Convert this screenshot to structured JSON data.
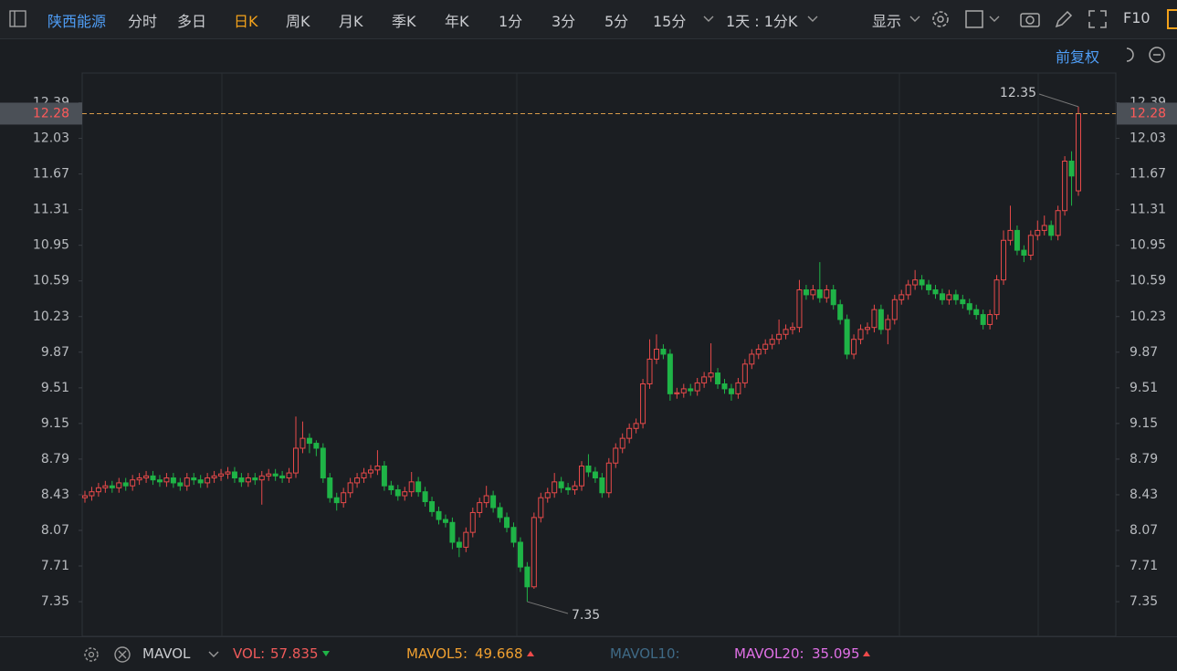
{
  "toolbar": {
    "stock": "陕西能源",
    "periods": [
      "分时",
      "多日",
      "日K",
      "周K",
      "月K",
      "季K",
      "年K",
      "1分",
      "3分",
      "5分",
      "15分"
    ],
    "interval": "1天 : 1分K",
    "display": "显示",
    "f10": "F10"
  },
  "adjust": "前复权",
  "chart_data": {
    "type": "candlestick",
    "up_color": "#e84a4a",
    "down_color": "#1fb447",
    "ylim": [
      7.0,
      12.69
    ],
    "yticks": [
      7.35,
      7.71,
      8.07,
      8.43,
      8.79,
      9.15,
      9.51,
      9.87,
      10.23,
      10.59,
      10.95,
      11.31,
      11.67,
      12.03,
      12.39
    ],
    "grid": false,
    "max_price": 12.35,
    "min_price": 7.35,
    "last_price": 12.28,
    "open": [
      8.4,
      8.42,
      8.46,
      8.5,
      8.52,
      8.5,
      8.55,
      8.52,
      8.58,
      8.6,
      8.62,
      8.58,
      8.56,
      8.6,
      8.55,
      8.52,
      8.6,
      8.58,
      8.55,
      8.6,
      8.62,
      8.64,
      8.66,
      8.6,
      8.56,
      8.6,
      8.58,
      8.62,
      8.64,
      8.62,
      8.6,
      8.65,
      8.9,
      9.0,
      8.95,
      8.9,
      8.6,
      8.4,
      8.35,
      8.45,
      8.55,
      8.6,
      8.65,
      8.68,
      8.72,
      8.52,
      8.48,
      8.42,
      8.46,
      8.56,
      8.46,
      8.36,
      8.26,
      8.18,
      8.15,
      7.95,
      7.9,
      8.05,
      8.25,
      8.35,
      8.42,
      8.3,
      8.2,
      8.1,
      7.95,
      7.7,
      7.5,
      8.2,
      8.4,
      8.45,
      8.56,
      8.5,
      8.48,
      8.52,
      8.72,
      8.66,
      8.6,
      8.45,
      8.75,
      8.9,
      9.0,
      9.1,
      9.15,
      9.55,
      9.8,
      9.9,
      9.85,
      9.45,
      9.46,
      9.5,
      9.48,
      9.56,
      9.62,
      9.66,
      9.55,
      9.5,
      9.45,
      9.56,
      9.75,
      9.85,
      9.9,
      9.95,
      10.0,
      10.05,
      10.1,
      10.12,
      10.5,
      10.45,
      10.5,
      10.42,
      10.5,
      10.35,
      10.2,
      9.85,
      10.0,
      10.1,
      10.12,
      10.3,
      10.1,
      10.2,
      10.4,
      10.45,
      10.55,
      10.6,
      10.55,
      10.5,
      10.46,
      10.4,
      10.45,
      10.4,
      10.36,
      10.3,
      10.25,
      10.15,
      10.25,
      10.6,
      11.0,
      11.1,
      10.9,
      10.85,
      11.05,
      11.1,
      11.15,
      11.05,
      11.3,
      11.8,
      11.5
    ],
    "high": [
      8.47,
      8.51,
      8.55,
      8.57,
      8.57,
      8.6,
      8.6,
      8.63,
      8.65,
      8.67,
      8.67,
      8.63,
      8.65,
      8.65,
      8.6,
      8.65,
      8.65,
      8.63,
      8.65,
      8.67,
      8.69,
      8.71,
      8.71,
      8.65,
      8.65,
      8.65,
      8.67,
      8.69,
      8.69,
      8.67,
      8.7,
      9.22,
      9.17,
      9.05,
      8.98,
      8.95,
      8.65,
      8.45,
      8.5,
      8.6,
      8.65,
      8.7,
      8.73,
      8.88,
      8.77,
      8.57,
      8.53,
      8.51,
      8.66,
      8.61,
      8.51,
      8.41,
      8.31,
      8.23,
      8.2,
      8.0,
      8.1,
      8.3,
      8.4,
      8.52,
      8.47,
      8.35,
      8.25,
      8.15,
      8.0,
      7.75,
      8.25,
      8.45,
      8.5,
      8.65,
      8.61,
      8.55,
      8.57,
      8.77,
      8.84,
      8.71,
      8.65,
      8.8,
      8.95,
      9.05,
      9.15,
      9.2,
      9.6,
      10.0,
      10.05,
      9.95,
      9.9,
      9.51,
      9.55,
      9.55,
      9.61,
      9.67,
      9.96,
      9.71,
      9.6,
      9.55,
      9.61,
      9.8,
      9.9,
      9.95,
      10.0,
      10.05,
      10.2,
      10.15,
      10.17,
      10.6,
      10.55,
      10.55,
      10.78,
      10.55,
      10.55,
      10.4,
      10.25,
      10.05,
      10.15,
      10.17,
      10.35,
      10.35,
      10.25,
      10.45,
      10.5,
      10.6,
      10.7,
      10.65,
      10.6,
      10.55,
      10.51,
      10.5,
      10.5,
      10.45,
      10.41,
      10.35,
      10.3,
      10.3,
      10.65,
      11.1,
      11.35,
      11.15,
      10.95,
      11.1,
      11.2,
      11.25,
      11.2,
      11.35,
      11.85,
      11.9,
      12.35
    ],
    "low": [
      8.35,
      8.37,
      8.41,
      8.45,
      8.45,
      8.45,
      8.47,
      8.47,
      8.53,
      8.55,
      8.53,
      8.51,
      8.51,
      8.5,
      8.47,
      8.47,
      8.53,
      8.5,
      8.5,
      8.55,
      8.57,
      8.59,
      8.55,
      8.51,
      8.51,
      8.53,
      8.33,
      8.57,
      8.57,
      8.55,
      8.55,
      8.6,
      8.85,
      8.85,
      8.82,
      8.55,
      8.35,
      8.27,
      8.3,
      8.4,
      8.5,
      8.55,
      8.6,
      8.63,
      8.47,
      8.43,
      8.37,
      8.37,
      8.41,
      8.41,
      8.31,
      8.21,
      8.13,
      8.1,
      7.88,
      7.8,
      7.85,
      8.0,
      8.2,
      8.3,
      8.25,
      8.15,
      8.05,
      7.9,
      7.65,
      7.35,
      7.48,
      8.15,
      8.35,
      8.4,
      8.45,
      8.43,
      8.43,
      8.47,
      8.61,
      8.55,
      8.4,
      8.4,
      8.7,
      8.85,
      8.95,
      9.05,
      9.1,
      9.5,
      9.75,
      9.8,
      9.38,
      9.4,
      9.41,
      9.43,
      9.43,
      9.51,
      9.57,
      9.5,
      9.45,
      9.38,
      9.4,
      9.51,
      9.7,
      9.8,
      9.85,
      9.9,
      9.95,
      10.0,
      10.05,
      10.07,
      10.4,
      10.4,
      10.37,
      10.37,
      10.3,
      10.15,
      9.8,
      9.8,
      9.95,
      10.05,
      10.07,
      10.05,
      9.95,
      10.15,
      10.35,
      10.4,
      10.5,
      10.5,
      10.45,
      10.41,
      10.35,
      10.35,
      10.35,
      10.31,
      10.25,
      10.2,
      10.1,
      10.1,
      10.2,
      10.55,
      10.95,
      10.85,
      10.78,
      10.8,
      11.0,
      11.05,
      11.0,
      11.0,
      11.25,
      11.35,
      11.45
    ],
    "close": [
      8.42,
      8.46,
      8.5,
      8.52,
      8.5,
      8.55,
      8.52,
      8.58,
      8.6,
      8.62,
      8.58,
      8.56,
      8.6,
      8.55,
      8.52,
      8.6,
      8.58,
      8.55,
      8.6,
      8.62,
      8.64,
      8.66,
      8.6,
      8.56,
      8.6,
      8.58,
      8.62,
      8.64,
      8.62,
      8.6,
      8.65,
      8.9,
      9.0,
      8.95,
      8.9,
      8.6,
      8.4,
      8.35,
      8.45,
      8.55,
      8.6,
      8.65,
      8.68,
      8.72,
      8.52,
      8.48,
      8.42,
      8.46,
      8.56,
      8.46,
      8.36,
      8.26,
      8.18,
      8.15,
      7.95,
      7.9,
      8.05,
      8.25,
      8.35,
      8.42,
      8.3,
      8.2,
      8.1,
      7.95,
      7.7,
      7.5,
      8.2,
      8.4,
      8.45,
      8.56,
      8.5,
      8.48,
      8.52,
      8.72,
      8.66,
      8.6,
      8.45,
      8.75,
      8.9,
      9.0,
      9.1,
      9.15,
      9.55,
      9.8,
      9.9,
      9.85,
      9.45,
      9.46,
      9.5,
      9.48,
      9.56,
      9.62,
      9.66,
      9.55,
      9.5,
      9.45,
      9.56,
      9.75,
      9.85,
      9.9,
      9.95,
      10.0,
      10.05,
      10.1,
      10.12,
      10.5,
      10.45,
      10.5,
      10.42,
      10.5,
      10.35,
      10.2,
      9.85,
      10.0,
      10.1,
      10.12,
      10.3,
      10.1,
      10.2,
      10.4,
      10.45,
      10.55,
      10.6,
      10.55,
      10.5,
      10.46,
      10.4,
      10.45,
      10.4,
      10.36,
      10.3,
      10.25,
      10.15,
      10.25,
      10.6,
      11.0,
      11.1,
      10.9,
      10.85,
      11.05,
      11.1,
      11.15,
      11.05,
      11.3,
      11.8,
      11.65,
      12.28
    ]
  },
  "indicator": {
    "name": "MAVOL",
    "vol_label": "VOL:",
    "vol": 57.835,
    "ma5_label": "MAVOL5:",
    "ma5": 49.668,
    "ma10_label": "MAVOL10:",
    "ma20_label": "MAVOL20:",
    "ma20": 35.095
  }
}
